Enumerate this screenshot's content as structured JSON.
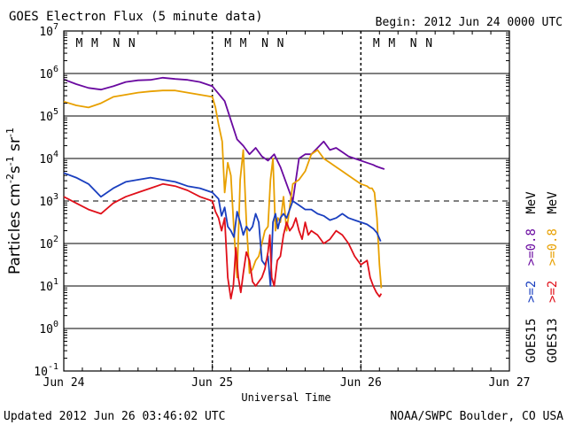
{
  "header": {
    "title": "GOES Electron Flux (5 minute data)",
    "begin": "Begin: 2012 Jun 24 0000 UTC"
  },
  "footer": {
    "updated": "Updated 2012 Jun 26 03:46:02 UTC",
    "credit": "NOAA/SWPC Boulder, CO USA"
  },
  "colors": {
    "goes15_2mev": "#1a3fbf",
    "goes13_2mev": "#e0101a",
    "goes15_08mev": "#6a0aa0",
    "goes13_08mev": "#e8a000",
    "marker_m": "#cc2020",
    "marker_n": "#1a3fbf"
  },
  "legend": {
    "goes15_label": "GOES15",
    "goes13_label": "GOES13",
    "ch_2_label": ">=2",
    "ch_08_label": ">=0.8",
    "unit_label": "MeV"
  },
  "chart_data": {
    "type": "line",
    "title": "GOES Electron Flux (5 minute data)",
    "xlabel": "Universal Time",
    "ylabel": "Particles cm-2 s-1 sr-1",
    "ylabel_parts": {
      "base": "Particles cm",
      "e1": "-2",
      "s": "s",
      "e2": "-1",
      "sr": " sr",
      "e3": "-1"
    },
    "yscale": "log",
    "ylim_exp": [
      -1,
      7
    ],
    "y_ticks": [
      {
        "base": "10",
        "exp": "-1",
        "value": -1
      },
      {
        "base": "10",
        "exp": "0",
        "value": 0
      },
      {
        "base": "10",
        "exp": "1",
        "value": 1
      },
      {
        "base": "10",
        "exp": "2",
        "value": 2
      },
      {
        "base": "10",
        "exp": "3",
        "value": 3
      },
      {
        "base": "10",
        "exp": "4",
        "value": 4
      },
      {
        "base": "10",
        "exp": "5",
        "value": 5
      },
      {
        "base": "10",
        "exp": "6",
        "value": 6
      },
      {
        "base": "10",
        "exp": "7",
        "value": 7
      }
    ],
    "xlim_hours": [
      0,
      72
    ],
    "x_ticks": [
      {
        "label": "Jun 24",
        "hour": 0
      },
      {
        "label": "Jun 25",
        "hour": 24
      },
      {
        "label": "Jun 26",
        "hour": 48
      },
      {
        "label": "Jun 27",
        "hour": 72
      }
    ],
    "alert_threshold_exp": 3,
    "day_markers": [
      {
        "label": "M",
        "hour": 2.5,
        "sat": "m"
      },
      {
        "label": "M",
        "hour": 5.0,
        "sat": "n"
      },
      {
        "label": "N",
        "hour": 8.5,
        "sat": "m"
      },
      {
        "label": "N",
        "hour": 11.0,
        "sat": "n"
      },
      {
        "label": "M",
        "hour": 26.5,
        "sat": "m"
      },
      {
        "label": "M",
        "hour": 29.0,
        "sat": "n"
      },
      {
        "label": "N",
        "hour": 32.5,
        "sat": "m"
      },
      {
        "label": "N",
        "hour": 35.0,
        "sat": "n"
      },
      {
        "label": "M",
        "hour": 50.5,
        "sat": "m"
      },
      {
        "label": "M",
        "hour": 53.0,
        "sat": "n"
      },
      {
        "label": "N",
        "hour": 56.5,
        "sat": "m"
      },
      {
        "label": "N",
        "hour": 59.0,
        "sat": "n"
      }
    ],
    "series": [
      {
        "name": "GOES15 >=0.8 MeV",
        "color": "#6a0aa0",
        "x": [
          0,
          2,
          4,
          6,
          8,
          10,
          12,
          14,
          16,
          18,
          20,
          22,
          24,
          26,
          27,
          28,
          29,
          30,
          31,
          32,
          33,
          34,
          35,
          36,
          37,
          38,
          39,
          40,
          41,
          42,
          43,
          44,
          45,
          46,
          47,
          48,
          49,
          50,
          50.4,
          50.8,
          51.2,
          51.8
        ],
        "y": [
          5.86,
          5.75,
          5.66,
          5.62,
          5.7,
          5.8,
          5.84,
          5.85,
          5.9,
          5.87,
          5.85,
          5.8,
          5.7,
          5.35,
          4.9,
          4.45,
          4.3,
          4.1,
          4.25,
          4.05,
          3.95,
          4.1,
          3.8,
          3.4,
          3.0,
          4.0,
          4.1,
          4.1,
          4.25,
          4.4,
          4.2,
          4.25,
          4.15,
          4.05,
          4.0,
          3.95,
          3.9,
          3.85,
          3.82,
          3.8,
          3.78,
          3.75
        ]
      },
      {
        "name": "GOES13 >=0.8 MeV",
        "color": "#e8a000",
        "x": [
          0,
          2,
          4,
          6,
          8,
          10,
          12,
          14,
          16,
          18,
          20,
          22,
          24,
          24.5,
          25,
          25.6,
          26,
          26.5,
          27,
          27.5,
          28,
          28.5,
          29,
          29.5,
          30,
          30.5,
          31,
          31.5,
          32,
          32.5,
          33,
          33.4,
          33.8,
          34.2,
          34.6,
          35,
          35.5,
          36,
          37,
          38,
          39,
          40,
          41,
          42,
          43,
          44,
          45,
          46,
          47,
          47.5,
          48,
          49,
          49.4,
          49.8,
          50.2,
          50.6,
          51,
          51.3
        ],
        "y": [
          5.34,
          5.25,
          5.2,
          5.3,
          5.45,
          5.5,
          5.55,
          5.58,
          5.6,
          5.6,
          5.55,
          5.5,
          5.45,
          5.2,
          4.8,
          4.4,
          3.2,
          3.9,
          3.6,
          2.3,
          1.2,
          3.5,
          4.2,
          2.5,
          1.3,
          1.4,
          1.6,
          1.7,
          2.0,
          2.3,
          2.4,
          3.5,
          4.0,
          2.3,
          2.6,
          2.5,
          3.1,
          2.3,
          3.4,
          3.5,
          3.7,
          4.1,
          4.2,
          4.0,
          3.9,
          3.8,
          3.7,
          3.6,
          3.5,
          3.45,
          3.4,
          3.35,
          3.3,
          3.3,
          3.2,
          2.6,
          1.5,
          0.95
        ]
      },
      {
        "name": "GOES15 >=2 MeV",
        "color": "#1a3fbf",
        "x": [
          0,
          2,
          4,
          6,
          8,
          10,
          12,
          14,
          16,
          18,
          20,
          22,
          24,
          25,
          25.5,
          26,
          26.5,
          27,
          27.5,
          28,
          28.5,
          29,
          29.5,
          30,
          30.5,
          31,
          31.5,
          32,
          32.5,
          33,
          33.4,
          33.8,
          34.2,
          34.6,
          35,
          35.5,
          36,
          37,
          38,
          39,
          40,
          41,
          42,
          43,
          44,
          45,
          46,
          47,
          48,
          49,
          50,
          50.6,
          51.2
        ],
        "y": [
          3.66,
          3.55,
          3.4,
          3.1,
          3.3,
          3.45,
          3.5,
          3.55,
          3.5,
          3.45,
          3.35,
          3.3,
          3.2,
          3.05,
          2.65,
          2.85,
          2.4,
          2.3,
          2.15,
          2.75,
          2.5,
          2.2,
          2.4,
          2.3,
          2.4,
          2.7,
          2.5,
          1.6,
          1.5,
          1.7,
          1.0,
          2.5,
          2.7,
          2.35,
          2.6,
          2.7,
          2.6,
          3.0,
          2.9,
          2.8,
          2.8,
          2.7,
          2.65,
          2.55,
          2.6,
          2.7,
          2.6,
          2.55,
          2.5,
          2.45,
          2.35,
          2.25,
          2.05
        ]
      },
      {
        "name": "GOES13 >=2 MeV",
        "color": "#e0101a",
        "x": [
          0,
          2,
          4,
          6,
          8,
          10,
          12,
          14,
          16,
          18,
          20,
          22,
          24,
          24.5,
          25,
          25.5,
          26,
          26.5,
          27,
          27.4,
          27.8,
          28.2,
          28.6,
          29,
          29.5,
          30,
          30.5,
          31,
          31.5,
          32,
          32.5,
          33,
          33.3,
          33.6,
          34,
          34.5,
          35,
          35.5,
          36,
          36.5,
          37,
          37.5,
          38,
          38.5,
          39,
          39.5,
          40,
          41,
          42,
          43,
          44,
          45,
          46,
          47,
          48,
          49,
          49.5,
          50,
          50.5,
          51,
          51.3
        ],
        "y": [
          3.1,
          2.95,
          2.8,
          2.7,
          2.95,
          3.1,
          3.2,
          3.3,
          3.4,
          3.35,
          3.25,
          3.1,
          3.0,
          2.75,
          2.6,
          2.3,
          2.6,
          1.2,
          0.7,
          1.0,
          1.9,
          1.2,
          0.85,
          1.3,
          1.8,
          1.6,
          1.1,
          1.0,
          1.1,
          1.2,
          1.4,
          1.8,
          2.2,
          1.2,
          1.0,
          1.6,
          1.7,
          2.2,
          2.5,
          2.3,
          2.4,
          2.6,
          2.3,
          2.1,
          2.5,
          2.2,
          2.3,
          2.2,
          2.0,
          2.1,
          2.3,
          2.2,
          2.0,
          1.7,
          1.5,
          1.6,
          1.2,
          1.0,
          0.85,
          0.75,
          0.82
        ]
      }
    ]
  }
}
